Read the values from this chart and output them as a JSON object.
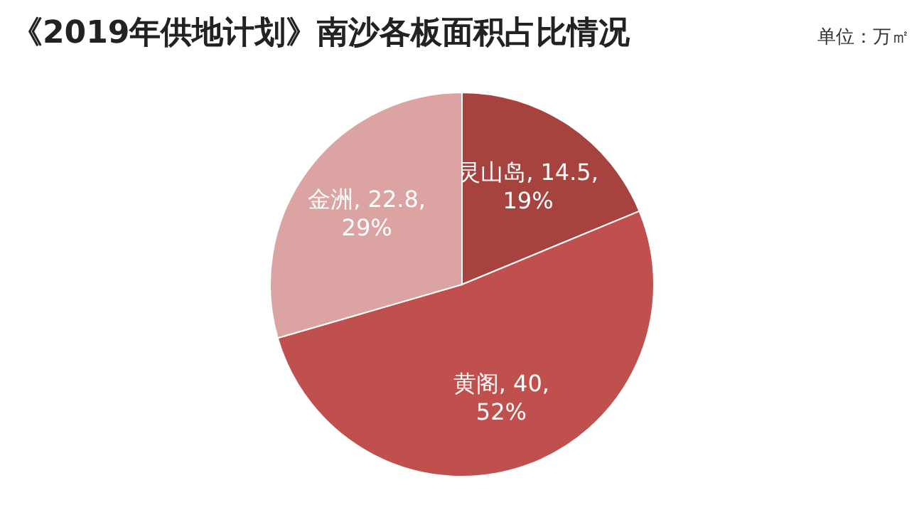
{
  "chart_data": {
    "type": "pie",
    "title": "《2019年供地计划》南沙各板面积占比情况",
    "annotations": [
      "单位：万㎡"
    ],
    "categories": [
      "灵山岛",
      "黄阁",
      "金洲"
    ],
    "values": [
      14.5,
      40,
      22.8
    ],
    "colors": [
      "#a6433f",
      "#c0504d",
      "#dba3a1"
    ],
    "value_labels": [
      "14.5, 19%",
      "40, 52%",
      "22.8, 29%"
    ]
  }
}
